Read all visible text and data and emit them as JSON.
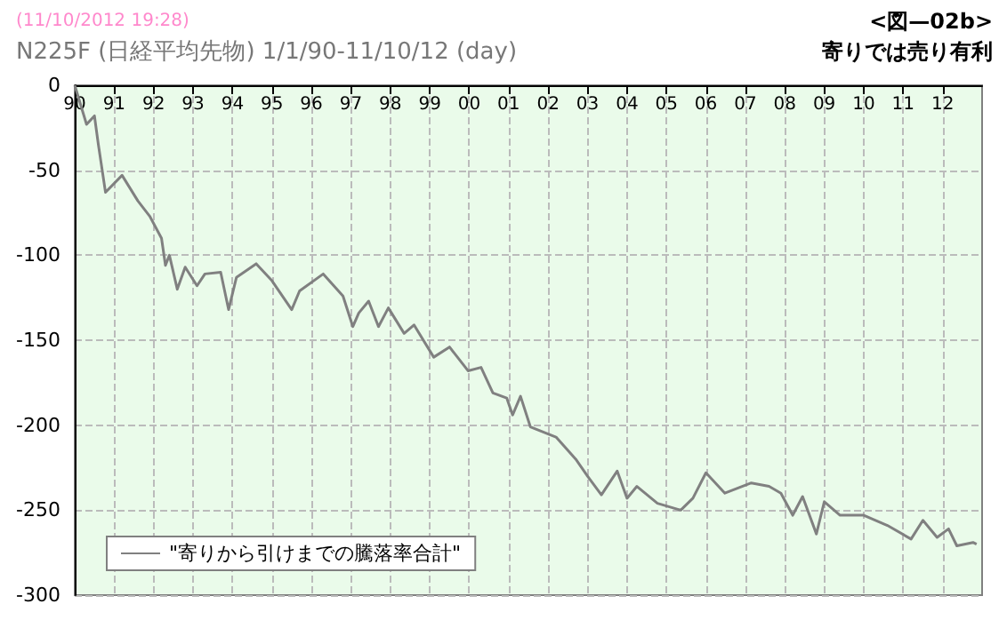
{
  "chart_data": {
    "type": "line",
    "title": "N225F (日経平均先物) 1/1/90-11/10/12 (day)",
    "subtitle": "(11/10/2012 19:28)",
    "annotations": [
      "<図—02b>",
      "寄りでは売り有利"
    ],
    "legend": "bottom left",
    "grid": true,
    "line_style": "solid",
    "marker": "none",
    "xlim": [
      1990,
      2013
    ],
    "ylim": [
      -300,
      0
    ],
    "xticks": [
      {
        "value": 1990,
        "label": "90"
      },
      {
        "value": 1991,
        "label": "91"
      },
      {
        "value": 1992,
        "label": "92"
      },
      {
        "value": 1993,
        "label": "93"
      },
      {
        "value": 1994,
        "label": "94"
      },
      {
        "value": 1995,
        "label": "95"
      },
      {
        "value": 1996,
        "label": "96"
      },
      {
        "value": 1997,
        "label": "97"
      },
      {
        "value": 1998,
        "label": "98"
      },
      {
        "value": 1999,
        "label": "99"
      },
      {
        "value": 2000,
        "label": "00"
      },
      {
        "value": 2001,
        "label": "01"
      },
      {
        "value": 2002,
        "label": "02"
      },
      {
        "value": 2003,
        "label": "03"
      },
      {
        "value": 2004,
        "label": "04"
      },
      {
        "value": 2005,
        "label": "05"
      },
      {
        "value": 2006,
        "label": "06"
      },
      {
        "value": 2007,
        "label": "07"
      },
      {
        "value": 2008,
        "label": "08"
      },
      {
        "value": 2009,
        "label": "09"
      },
      {
        "value": 2010,
        "label": "10"
      },
      {
        "value": 2011,
        "label": "11"
      },
      {
        "value": 2012,
        "label": "12"
      }
    ],
    "yticks": [
      -300,
      -250,
      -200,
      -150,
      -100,
      -50,
      0
    ],
    "series": [
      {
        "name": "\"寄りから引けまでの騰落率合計\"",
        "color": "#808080",
        "x": [
          1990,
          1990.3,
          1990.5,
          1990.6,
          1990.78,
          1991.2,
          1991.6,
          1991.9,
          1992.2,
          1992.3,
          1992.4,
          1992.6,
          1992.8,
          1993.1,
          1993.3,
          1993.7,
          1993.9,
          1994.1,
          1994.6,
          1995.0,
          1995.5,
          1995.7,
          1996.3,
          1996.8,
          1997.05,
          1997.2,
          1997.45,
          1997.7,
          1997.95,
          1998.35,
          1998.6,
          1999.1,
          1999.5,
          1999.97,
          2000.3,
          2000.6,
          2000.95,
          2001.1,
          2001.3,
          2001.55,
          2002.2,
          2002.7,
          2003.0,
          2003.35,
          2003.75,
          2004.0,
          2004.25,
          2004.77,
          2005.36,
          2005.67,
          2006.0,
          2006.48,
          2007.15,
          2007.6,
          2007.9,
          2008.2,
          2008.45,
          2008.8,
          2009.0,
          2009.4,
          2010.0,
          2010.6,
          2011.2,
          2011.5,
          2011.86,
          2012.15,
          2012.36,
          2012.77,
          2012.86
        ],
        "values": [
          0,
          -23,
          -18,
          -35,
          -63,
          -53,
          -68,
          -77,
          -90,
          -106,
          -100,
          -120,
          -107,
          -118,
          -111,
          -110,
          -132,
          -113,
          -105,
          -115,
          -132,
          -121,
          -111,
          -124,
          -142,
          -134,
          -127,
          -142,
          -131,
          -146,
          -141,
          -160,
          -154,
          -168,
          -166,
          -181,
          -184,
          -194,
          -183,
          -201,
          -207,
          -220,
          -230,
          -241,
          -227,
          -243,
          -236,
          -246,
          -250,
          -243,
          -228,
          -240,
          -234,
          -236,
          -240,
          -253,
          -242,
          -264,
          -245,
          -253,
          -253,
          -259,
          -267,
          -256,
          -266,
          -261,
          -271,
          -269,
          -270
        ]
      }
    ]
  }
}
